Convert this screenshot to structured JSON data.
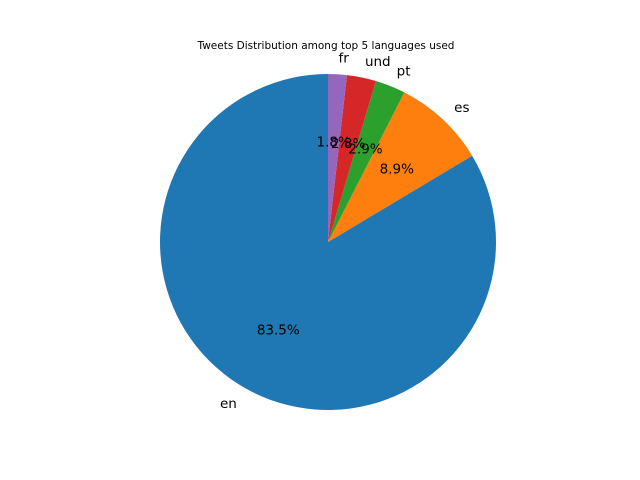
{
  "chart_data": {
    "type": "pie",
    "title": "Tweets Distribution among top 5 languages used",
    "categories": [
      "en",
      "es",
      "pt",
      "und",
      "fr"
    ],
    "values": [
      83.5,
      8.9,
      2.9,
      2.8,
      1.8
    ],
    "percent_labels": [
      "83.5%",
      "8.9%",
      "2.9%",
      "2.8%",
      "1.8%"
    ],
    "colors": [
      "#1f77b4",
      "#ff7f0e",
      "#2ca02c",
      "#d62728",
      "#9467bd"
    ],
    "start_angle_deg": 90,
    "direction": "counterclockwise"
  }
}
